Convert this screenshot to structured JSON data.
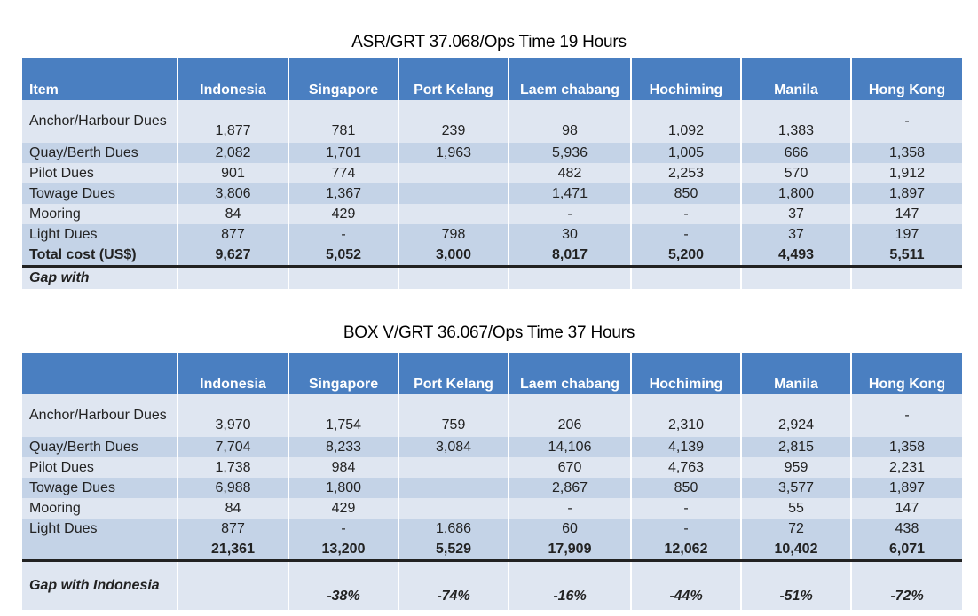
{
  "table1": {
    "caption": "ASR/GRT 37.068/Ops Time 19 Hours",
    "headers": [
      "Item",
      "Indonesia",
      "Singapore",
      "Port Kelang",
      "Laem chabang",
      "Hochiming",
      "Manila",
      "Hong Kong"
    ],
    "rows": [
      [
        "Anchor/Harbour Dues",
        "1,877",
        "781",
        "239",
        "98",
        "1,092",
        "1,383",
        "-"
      ],
      [
        "Quay/Berth Dues",
        "2,082",
        "1,701",
        "1,963",
        "5,936",
        "1,005",
        "666",
        "1,358"
      ],
      [
        "Pilot Dues",
        "901",
        "774",
        "",
        "482",
        "2,253",
        "570",
        "1,912"
      ],
      [
        "Towage Dues",
        "3,806",
        "1,367",
        "",
        "1,471",
        "850",
        "1,800",
        "1,897"
      ],
      [
        "Mooring",
        "84",
        "429",
        "",
        "-",
        "-",
        "37",
        "147"
      ],
      [
        "Light Dues",
        "877",
        "-",
        "798",
        "30",
        "-",
        "37",
        "197"
      ]
    ],
    "total": [
      "Total cost (US$)",
      "9,627",
      "5,052",
      "3,000",
      "8,017",
      "5,200",
      "4,493",
      "5,511"
    ],
    "gap": [
      "Gap with",
      "",
      "",
      "",
      "",
      "",
      "",
      ""
    ]
  },
  "table2": {
    "caption": "BOX V/GRT 36.067/Ops Time 37 Hours",
    "headers": [
      "",
      "Indonesia",
      "Singapore",
      "Port Kelang",
      "Laem chabang",
      "Hochiming",
      "Manila",
      "Hong Kong"
    ],
    "rows": [
      [
        "Anchor/Harbour Dues",
        "3,970",
        "1,754",
        "759",
        "206",
        "2,310",
        "2,924",
        "-"
      ],
      [
        "Quay/Berth Dues",
        "7,704",
        "8,233",
        "3,084",
        "14,106",
        "4,139",
        "2,815",
        "1,358"
      ],
      [
        "Pilot Dues",
        "1,738",
        "984",
        "",
        "670",
        "4,763",
        "959",
        "2,231"
      ],
      [
        "Towage Dues",
        "6,988",
        "1,800",
        "",
        "2,867",
        "850",
        "3,577",
        "1,897"
      ],
      [
        "Mooring",
        "84",
        "429",
        "",
        "-",
        "-",
        "55",
        "147"
      ],
      [
        "Light Dues",
        "877",
        "-",
        "1,686",
        "60",
        "-",
        "72",
        "438"
      ]
    ],
    "total": [
      "",
      "21,361",
      "13,200",
      "5,529",
      "17,909",
      "12,062",
      "10,402",
      "6,071"
    ],
    "gap": [
      "Gap with Indonesia",
      "",
      "-38%",
      "-74%",
      "-16%",
      "-44%",
      "-51%",
      "-72%"
    ]
  },
  "colors": {
    "header_bg": "#4a7fc1",
    "row_dark": "#c4d3e7",
    "row_light": "#dfe6f1"
  }
}
